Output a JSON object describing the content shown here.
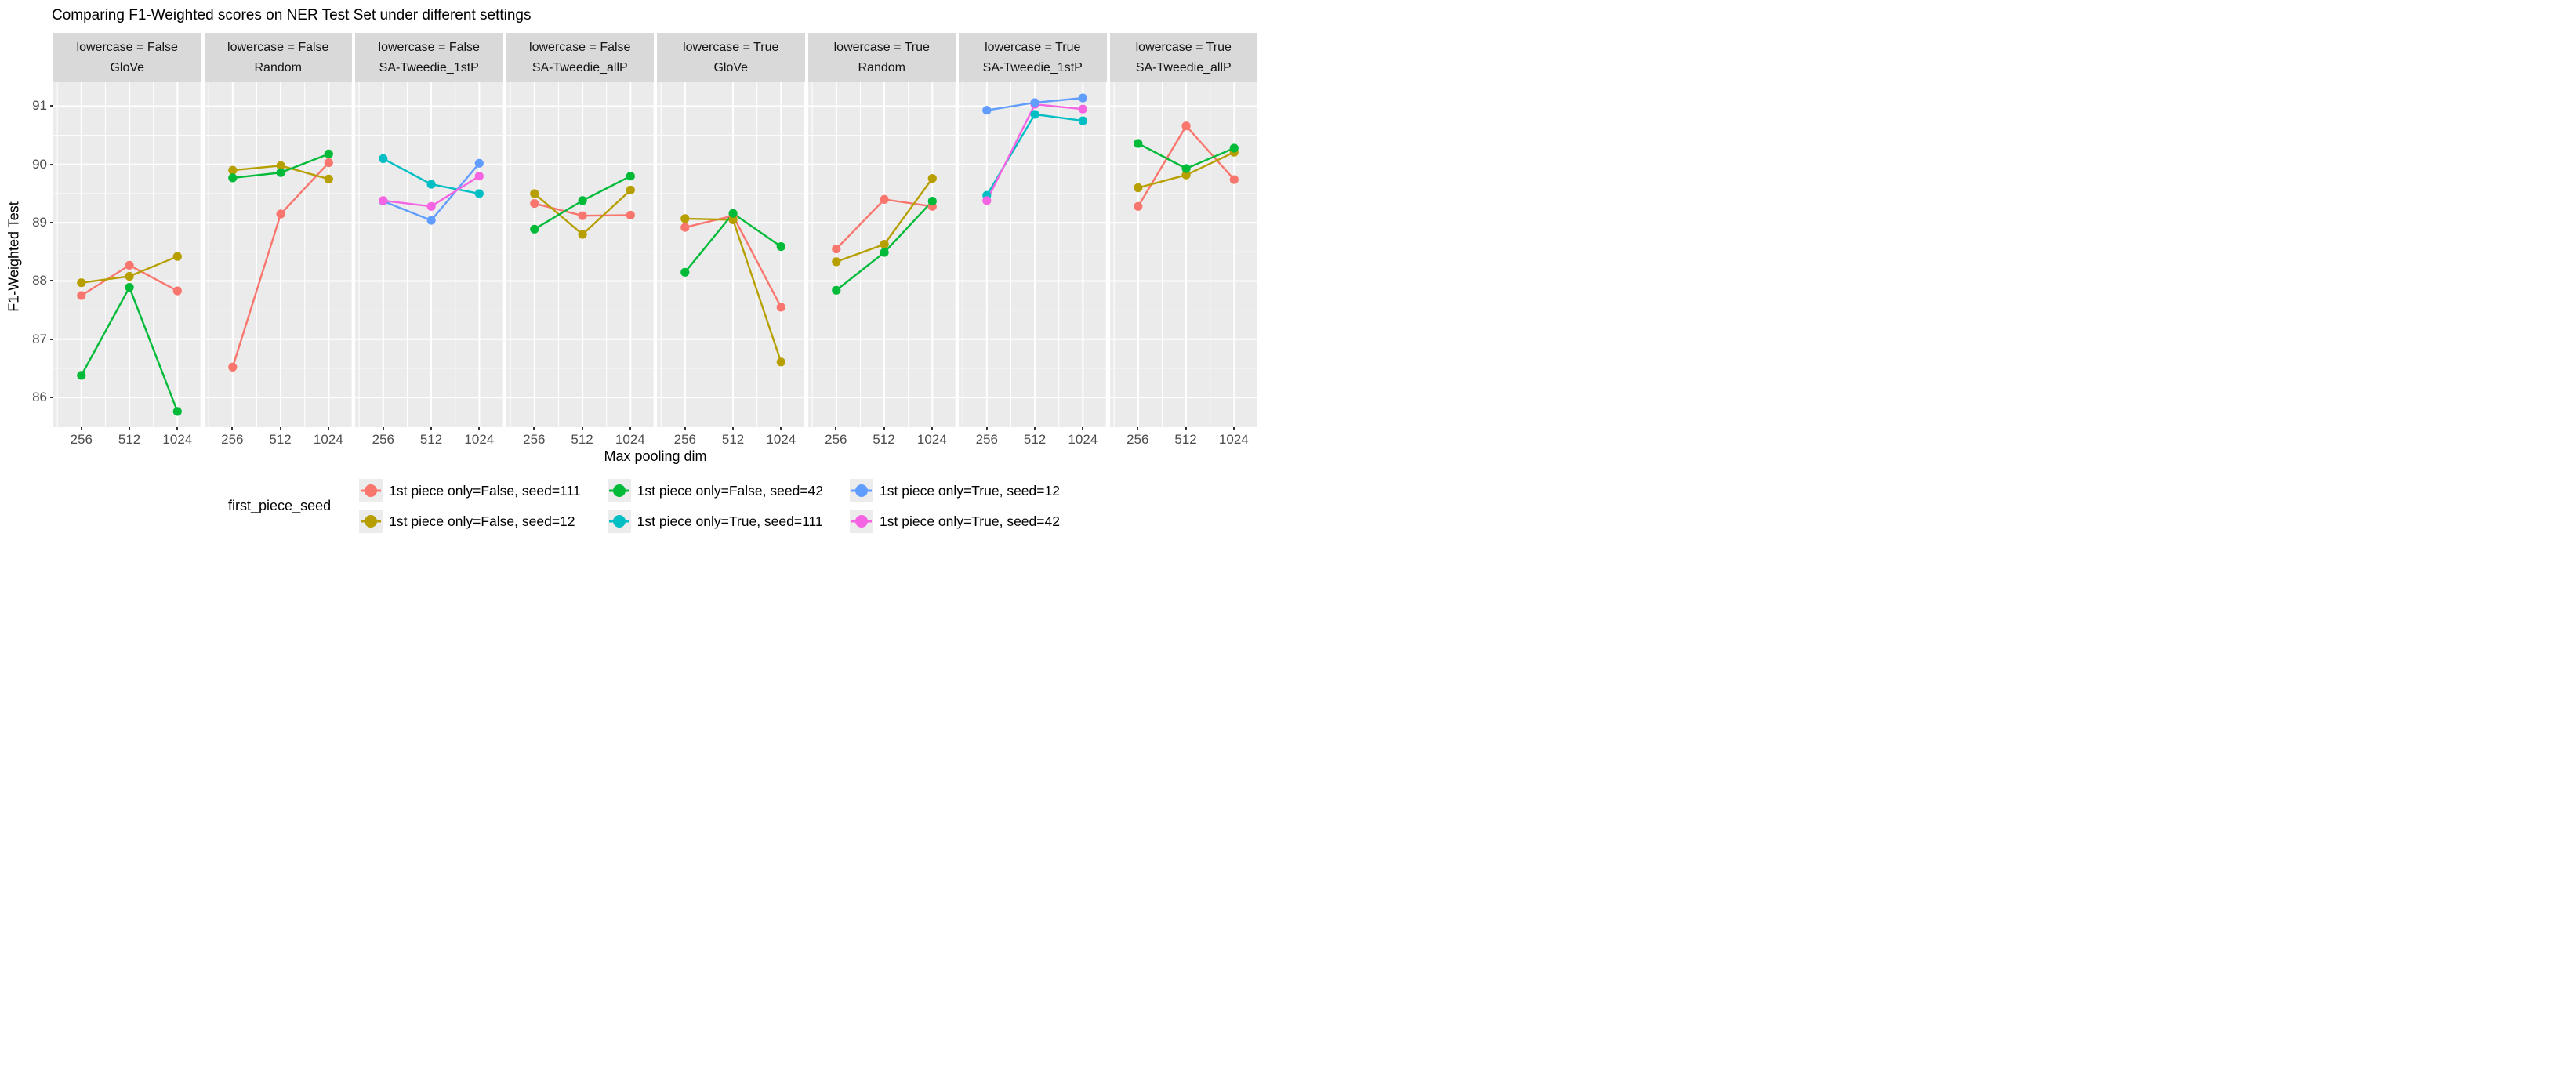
{
  "title": "Comparing F1-Weighted scores on NER Test Set under different settings",
  "chart_data": {
    "type": "line",
    "x": [
      256,
      512,
      1024
    ],
    "xlabel": "Max pooling dim",
    "ylabel": "F1-Weighted Test",
    "ylim": [
      85.49,
      91.41
    ],
    "yticks": [
      86,
      87,
      88,
      89,
      90,
      91
    ],
    "grid": "major and minor, white on gray panel",
    "legend_position": "bottom",
    "legend_title": "first_piece_seed",
    "series_defs": [
      {
        "name": "1st piece only=False, seed=111",
        "color": "#F8766D"
      },
      {
        "name": "1st piece only=False, seed=12",
        "color": "#B79F00"
      },
      {
        "name": "1st piece only=False, seed=42",
        "color": "#00BA38"
      },
      {
        "name": "1st piece only=True, seed=111",
        "color": "#00BFC4"
      },
      {
        "name": "1st piece only=True, seed=12",
        "color": "#619CFF"
      },
      {
        "name": "1st piece only=True, seed=42",
        "color": "#F564E3"
      }
    ],
    "legend_columns": [
      [
        0,
        1
      ],
      [
        2,
        3
      ],
      [
        4,
        5
      ]
    ],
    "panels": [
      {
        "strip1": "lowercase = False",
        "strip2": "GloVe",
        "series": [
          {
            "name": "1st piece only=False, seed=111",
            "values": [
              87.75,
              88.27,
              87.83
            ]
          },
          {
            "name": "1st piece only=False, seed=12",
            "values": [
              87.97,
              88.08,
              88.42
            ]
          },
          {
            "name": "1st piece only=False, seed=42",
            "values": [
              86.38,
              87.89,
              85.76
            ]
          }
        ]
      },
      {
        "strip1": "lowercase = False",
        "strip2": "Random",
        "series": [
          {
            "name": "1st piece only=False, seed=111",
            "values": [
              86.52,
              89.15,
              90.03
            ]
          },
          {
            "name": "1st piece only=False, seed=12",
            "values": [
              89.9,
              89.98,
              89.75
            ]
          },
          {
            "name": "1st piece only=False, seed=42",
            "values": [
              89.77,
              89.86,
              90.18
            ]
          }
        ]
      },
      {
        "strip1": "lowercase = False",
        "strip2": "SA-Tweedie_1stP",
        "series": [
          {
            "name": "1st piece only=True, seed=111",
            "values": [
              90.1,
              89.66,
              89.5
            ]
          },
          {
            "name": "1st piece only=True, seed=12",
            "values": [
              89.37,
              89.04,
              90.02
            ]
          },
          {
            "name": "1st piece only=True, seed=42",
            "values": [
              89.38,
              89.28,
              89.8
            ]
          }
        ]
      },
      {
        "strip1": "lowercase = False",
        "strip2": "SA-Tweedie_allP",
        "series": [
          {
            "name": "1st piece only=False, seed=111",
            "values": [
              89.33,
              89.12,
              89.13
            ]
          },
          {
            "name": "1st piece only=False, seed=12",
            "values": [
              89.5,
              88.8,
              89.56
            ]
          },
          {
            "name": "1st piece only=False, seed=42",
            "values": [
              88.89,
              89.38,
              89.8
            ]
          }
        ]
      },
      {
        "strip1": "lowercase = True",
        "strip2": "GloVe",
        "series": [
          {
            "name": "1st piece only=False, seed=111",
            "values": [
              88.92,
              89.12,
              87.55
            ]
          },
          {
            "name": "1st piece only=False, seed=12",
            "values": [
              89.07,
              89.05,
              86.61
            ]
          },
          {
            "name": "1st piece only=False, seed=42",
            "values": [
              88.15,
              89.16,
              88.59
            ]
          }
        ]
      },
      {
        "strip1": "lowercase = True",
        "strip2": "Random",
        "series": [
          {
            "name": "1st piece only=False, seed=111",
            "values": [
              88.55,
              89.4,
              89.28
            ]
          },
          {
            "name": "1st piece only=False, seed=12",
            "values": [
              88.33,
              88.63,
              89.76
            ]
          },
          {
            "name": "1st piece only=False, seed=42",
            "values": [
              87.84,
              88.49,
              89.37
            ]
          }
        ]
      },
      {
        "strip1": "lowercase = True",
        "strip2": "SA-Tweedie_1stP",
        "series": [
          {
            "name": "1st piece only=True, seed=111",
            "values": [
              89.47,
              90.86,
              90.75
            ]
          },
          {
            "name": "1st piece only=True, seed=42",
            "values": [
              89.38,
              91.03,
              90.95
            ]
          },
          {
            "name": "1st piece only=True, seed=12",
            "values": [
              90.93,
              91.06,
              91.14
            ]
          }
        ]
      },
      {
        "strip1": "lowercase = True",
        "strip2": "SA-Tweedie_allP",
        "series": [
          {
            "name": "1st piece only=False, seed=111",
            "values": [
              89.28,
              90.66,
              89.74
            ]
          },
          {
            "name": "1st piece only=False, seed=12",
            "values": [
              89.6,
              89.82,
              90.21
            ]
          },
          {
            "name": "1st piece only=False, seed=42",
            "values": [
              90.36,
              89.93,
              90.28
            ]
          }
        ]
      }
    ],
    "panel_bg": "#EBEBEB",
    "strip_bg": "#D9D9D9",
    "grid_color": "#FFFFFF",
    "tick_text_color": "#4D4D4D"
  }
}
